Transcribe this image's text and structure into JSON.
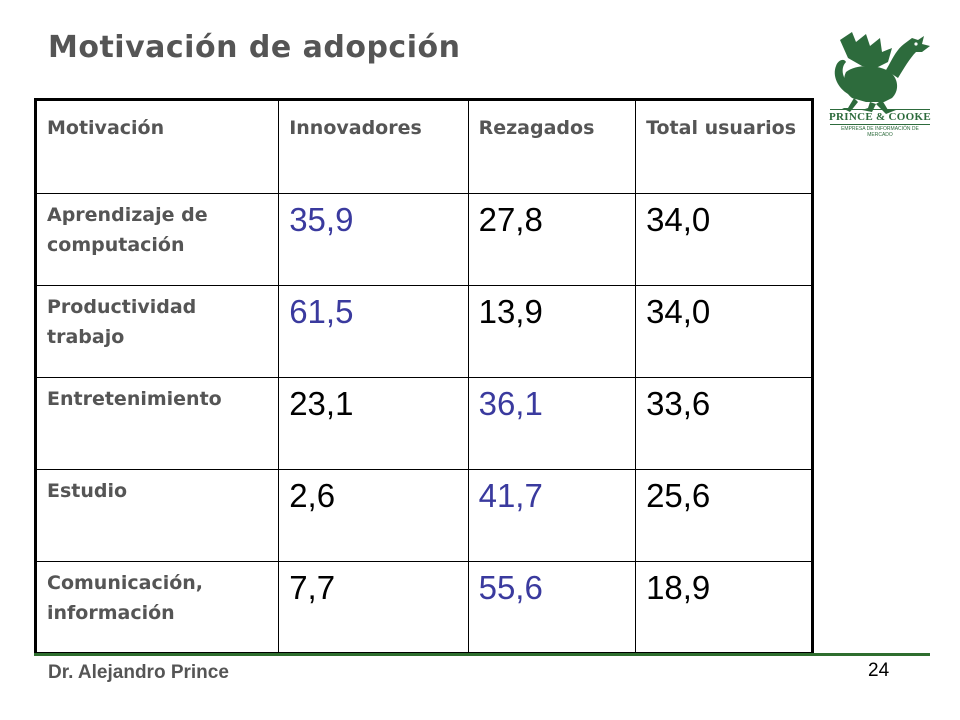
{
  "slide": {
    "title": "Motivación de adopción",
    "logo": {
      "name": "PRINCE & COOKE",
      "tagline": "EMPRESA DE INFORMACIÓN DE MERCADO",
      "color": "#2d6b3c"
    },
    "footer": {
      "author": "Dr. Alejandro Prince",
      "page": "24"
    }
  },
  "table": {
    "headers": [
      "Motivación",
      "Innovadores",
      "Rezagados",
      "Total usuarios"
    ],
    "rows": [
      {
        "label": "Aprendizaje de computación",
        "values": [
          "35,9",
          "27,8",
          "34,0"
        ],
        "highlight": [
          true,
          false,
          false
        ]
      },
      {
        "label": "Productividad trabajo",
        "values": [
          "61,5",
          "13,9",
          "34,0"
        ],
        "highlight": [
          true,
          false,
          false
        ]
      },
      {
        "label": "Entretenimiento",
        "values": [
          "23,1",
          "36,1",
          "33,6"
        ],
        "highlight": [
          false,
          true,
          false
        ]
      },
      {
        "label": "Estudio",
        "values": [
          "2,6",
          "41,7",
          "25,6"
        ],
        "highlight": [
          false,
          true,
          false
        ]
      },
      {
        "label": "Comunicación, información",
        "values": [
          "7,7",
          "55,6",
          "18,9"
        ],
        "highlight": [
          false,
          true,
          false
        ]
      }
    ],
    "highlight_color": "#3a3a9e"
  }
}
